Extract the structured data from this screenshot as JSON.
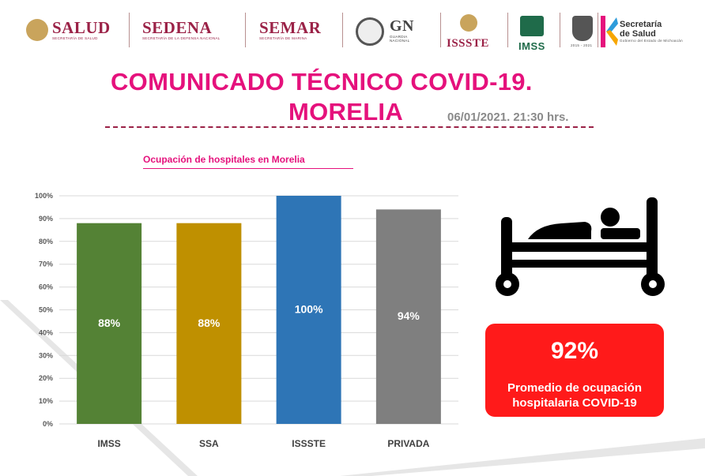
{
  "logos": {
    "salud": {
      "name": "SALUD",
      "sub": "SECRETARÍA DE SALUD"
    },
    "sedena": {
      "name": "SEDENA",
      "sub": "SECRETARÍA DE LA DEFENSA NACIONAL"
    },
    "semar": {
      "name": "SEMAR",
      "sub": "SECRETARÍA DE MARINA"
    },
    "gn": {
      "name": "GN",
      "sub1": "GUARDIA",
      "sub2": "NACIONAL"
    },
    "issste": {
      "name": "ISSSTE"
    },
    "imss": {
      "name": "IMSS"
    },
    "michoacan": {
      "years": "2015 - 2021"
    },
    "secretaria": {
      "line1": "Secretaría",
      "line2": "de Salud",
      "sub": "Gobierno del Estado de Michoacán"
    }
  },
  "header": {
    "title_line1": "COMUNICADO TÉCNICO COVID-19.",
    "title_line2": "MORELIA",
    "date": "06/01/2021.  21:30 hrs."
  },
  "chart_data": {
    "type": "bar",
    "title": "Ocupación de hospitales en Morelia",
    "categories": [
      "IMSS",
      "SSA",
      "ISSSTE",
      "PRIVADA"
    ],
    "values": [
      88,
      88,
      100,
      94
    ],
    "value_labels": [
      "88%",
      "88%",
      "100%",
      "94%"
    ],
    "colors": [
      "#548235",
      "#bf9000",
      "#2e75b6",
      "#7f7f7f"
    ],
    "ylim": [
      0,
      100
    ],
    "y_ticks": [
      "0%",
      "10%",
      "20%",
      "30%",
      "40%",
      "50%",
      "60%",
      "70%",
      "80%",
      "90%",
      "100%"
    ],
    "grid": true
  },
  "summary": {
    "value": "92%",
    "label": "Promedio de ocupación hospitalaria COVID-19",
    "box_color": "#ff1a1a"
  },
  "icons": {
    "bed": "hospital-bed-icon"
  }
}
